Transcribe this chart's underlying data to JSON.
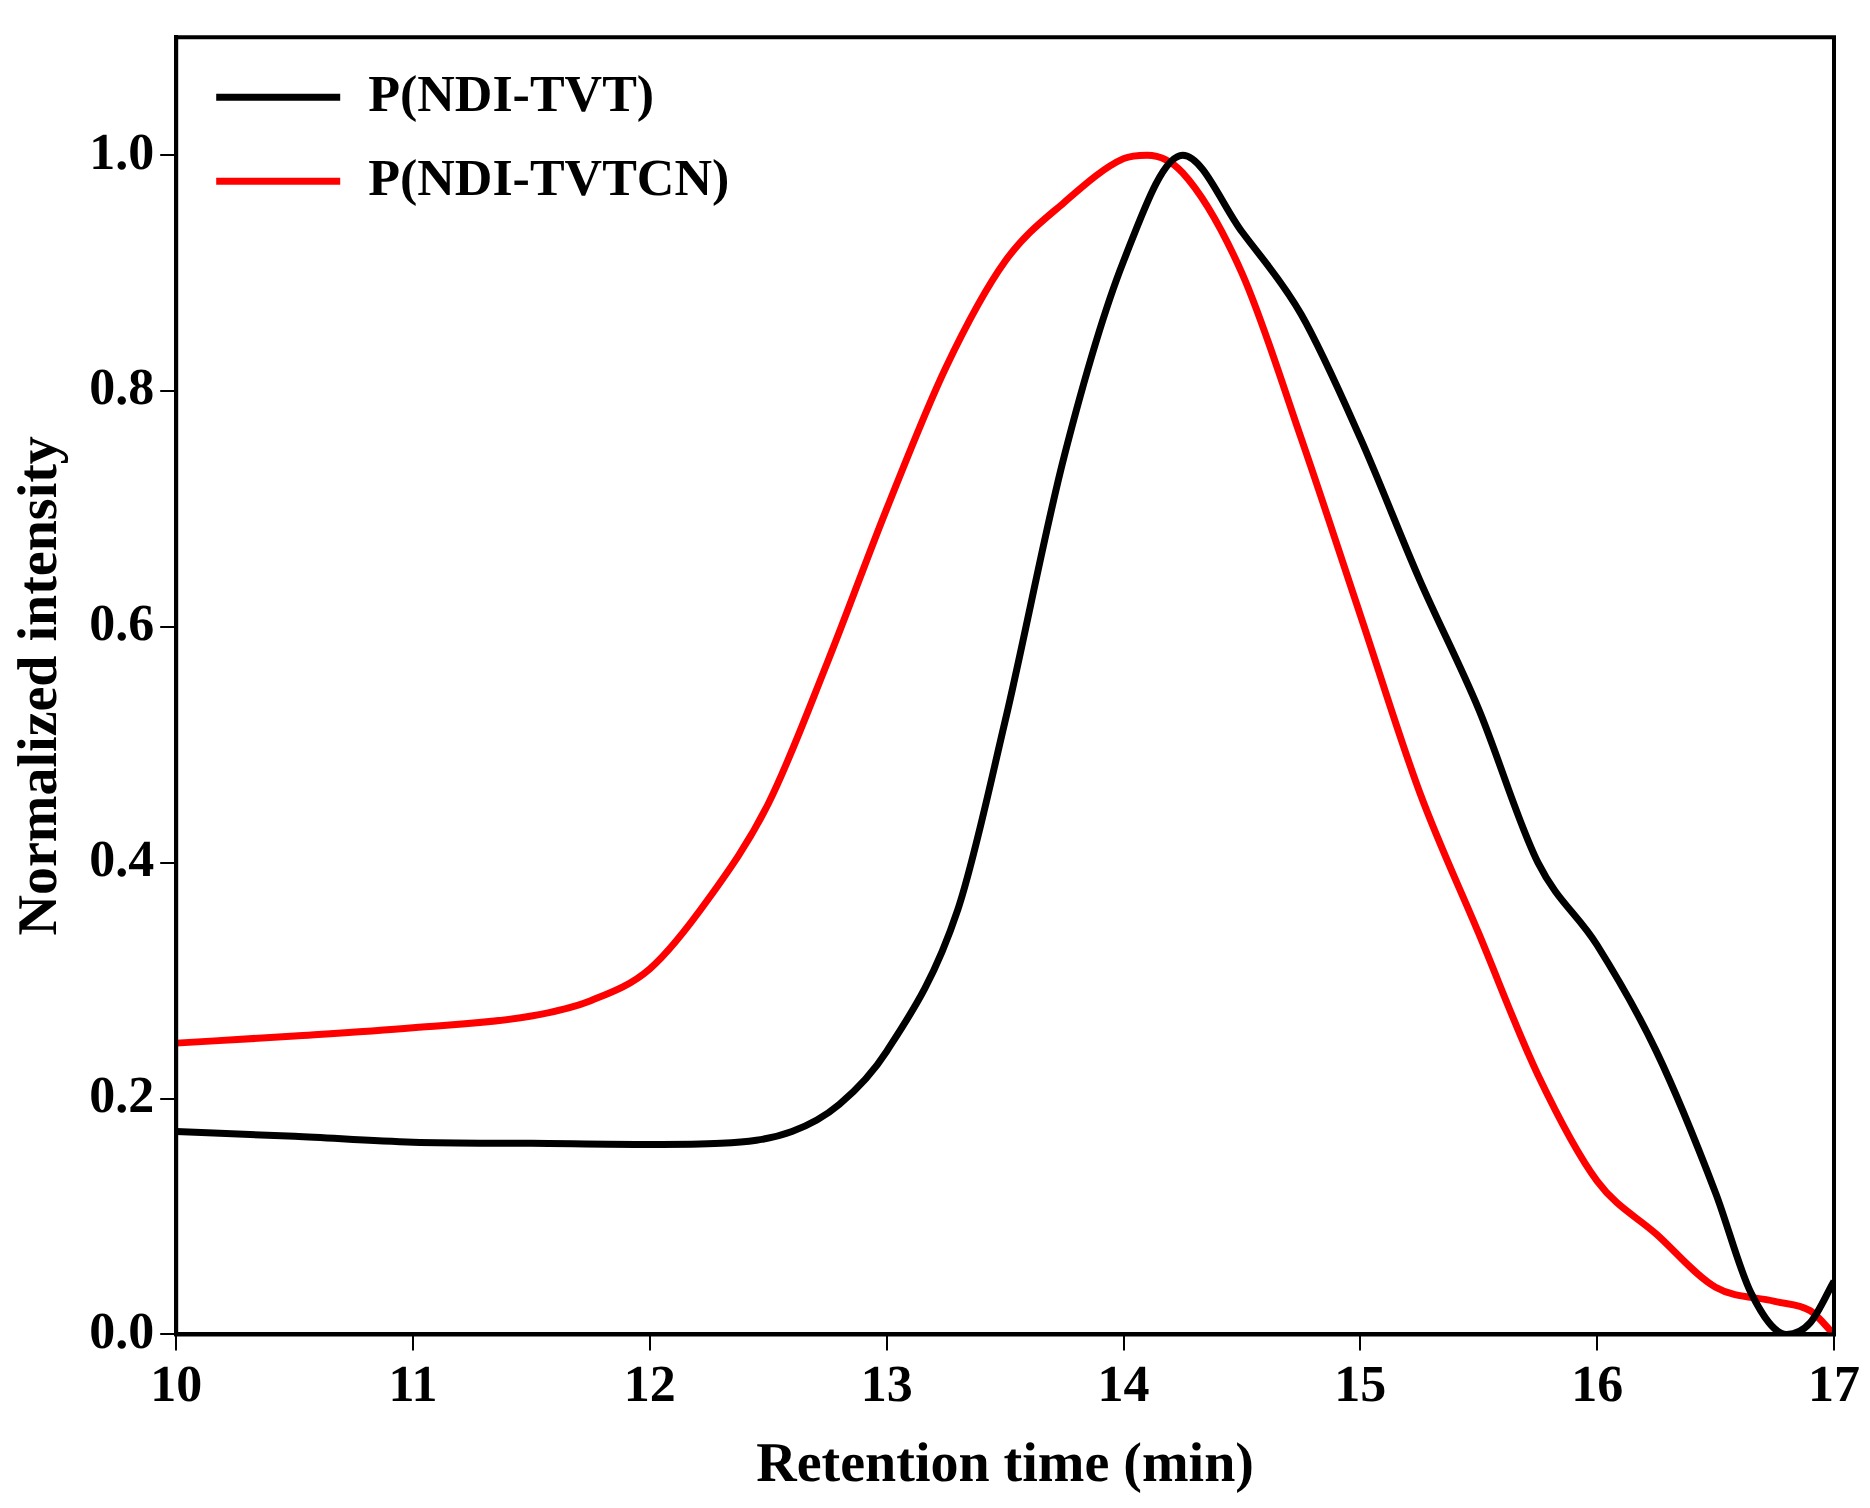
{
  "chart_data": {
    "type": "line",
    "xlabel": "Retention time (min)",
    "ylabel": "Normalized intensity",
    "xlim": [
      10,
      17
    ],
    "xticks": [
      10,
      11,
      12,
      13,
      14,
      15,
      16,
      17
    ],
    "ylim": [
      0,
      1.1
    ],
    "yticks": [
      {
        "value": 0,
        "label": "0.0"
      },
      {
        "value": 0.2,
        "label": "0.2"
      },
      {
        "value": 0.4,
        "label": "0.4"
      },
      {
        "value": 0.6,
        "label": "0.6"
      },
      {
        "value": 0.8,
        "label": "0.8"
      },
      {
        "value": 1,
        "label": "1.0"
      }
    ],
    "grid": false,
    "legend": "top left",
    "marker": "none",
    "line_style": "solid",
    "series": [
      {
        "name": "P(NDI-TVT)",
        "color": "#000000",
        "x": [
          10,
          10.5,
          11,
          11.5,
          12,
          12.3,
          12.6,
          12.8,
          13,
          13.3,
          13.5,
          13.75,
          14,
          14.25,
          14.5,
          14.75,
          15,
          15.25,
          15.5,
          15.75,
          16,
          16.25,
          16.5,
          16.65,
          16.8,
          16.9,
          17
        ],
        "values": [
          0.172,
          0.168,
          0.163,
          0.162,
          0.161,
          0.162,
          0.172,
          0.195,
          0.24,
          0.36,
          0.52,
          0.745,
          0.91,
          1.0,
          0.935,
          0.865,
          0.76,
          0.64,
          0.53,
          0.4,
          0.33,
          0.24,
          0.12,
          0.035,
          0,
          0.01,
          0.045
        ]
      },
      {
        "name": "P(NDI-TVTCN)",
        "color": "#ff0000",
        "x": [
          10,
          10.5,
          11,
          11.5,
          11.75,
          12,
          12.25,
          12.5,
          12.75,
          13,
          13.25,
          13.5,
          13.75,
          14,
          14.1,
          14.25,
          14.5,
          14.75,
          15,
          15.25,
          15.5,
          15.75,
          16,
          16.25,
          16.5,
          16.75,
          16.9,
          17
        ],
        "values": [
          0.247,
          0.253,
          0.26,
          0.27,
          0.283,
          0.31,
          0.37,
          0.45,
          0.57,
          0.7,
          0.82,
          0.91,
          0.96,
          0.997,
          1.0,
          0.985,
          0.9,
          0.76,
          0.61,
          0.46,
          0.34,
          0.22,
          0.13,
          0.085,
          0.04,
          0.028,
          0.02,
          0
        ]
      }
    ]
  }
}
